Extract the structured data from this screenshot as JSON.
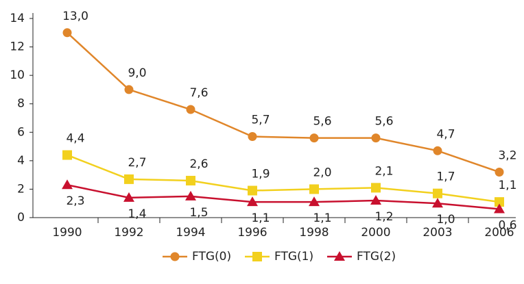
{
  "chart_data": {
    "type": "line",
    "categories": [
      "1990",
      "1992",
      "1994",
      "1996",
      "1998",
      "2000",
      "2003",
      "2006"
    ],
    "series": [
      {
        "name": "FTG(0)",
        "color": "#e0862a",
        "marker": "circle",
        "label_position": "above",
        "values": [
          13.0,
          9.0,
          7.6,
          5.7,
          5.6,
          5.6,
          4.7,
          3.2
        ],
        "value_labels": [
          "13,0",
          "9,0",
          "7,6",
          "5,7",
          "5,6",
          "5,6",
          "4,7",
          "3,2"
        ]
      },
      {
        "name": "FTG(1)",
        "color": "#f2d01e",
        "marker": "square",
        "label_position": "above",
        "values": [
          4.4,
          2.7,
          2.6,
          1.9,
          2.0,
          2.1,
          1.7,
          1.1
        ],
        "value_labels": [
          "4,4",
          "2,7",
          "2,6",
          "1,9",
          "2,0",
          "2,1",
          "1,7",
          "1,1"
        ]
      },
      {
        "name": "FTG(2)",
        "color": "#c8102e",
        "marker": "triangle",
        "label_position": "below",
        "values": [
          2.3,
          1.4,
          1.5,
          1.1,
          1.1,
          1.2,
          1.0,
          0.6
        ],
        "value_labels": [
          "2,3",
          "1,4",
          "1,5",
          "1,1",
          "1,1",
          "1,2",
          "1,0",
          "0,6"
        ]
      }
    ],
    "ylim": [
      0,
      14
    ],
    "yticks": [
      0,
      2,
      4,
      6,
      8,
      10,
      12,
      14
    ],
    "grid": false,
    "legend": "bottom"
  }
}
